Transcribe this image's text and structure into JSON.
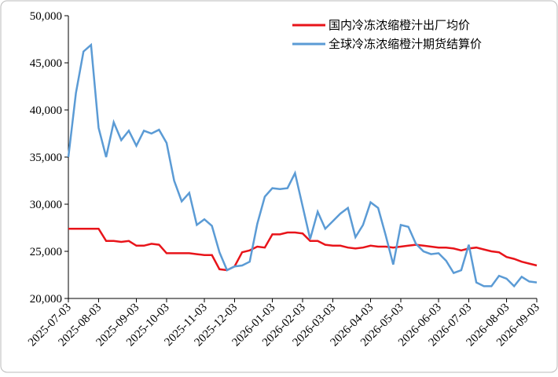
{
  "chart_data": {
    "type": "line",
    "categories": [
      "2025-07-03",
      null,
      null,
      null,
      "2025-08-03",
      null,
      null,
      null,
      null,
      "2025-09-03",
      null,
      null,
      null,
      "2025-10-03",
      null,
      null,
      null,
      null,
      "2025-11-03",
      null,
      null,
      null,
      "2025-12-03",
      null,
      null,
      null,
      null,
      "2026-01-03",
      null,
      null,
      null,
      "2026-02-03",
      null,
      null,
      null,
      "2026-03-03",
      null,
      null,
      null,
      null,
      "2026-04-03",
      null,
      null,
      null,
      "2026-05-03",
      null,
      null,
      null,
      null,
      "2026-06-03",
      null,
      null,
      null,
      "2026-07-03",
      null,
      null,
      null,
      null,
      "2026-08-03",
      null,
      null,
      null,
      "2026-09-03"
    ],
    "series": [
      {
        "name": "国内冷冻浓缩橙汁出厂均价",
        "color": "#e8141a",
        "values": [
          27400,
          27400,
          27400,
          27400,
          27400,
          26100,
          26100,
          26000,
          26100,
          25600,
          25600,
          25800,
          25700,
          24800,
          24800,
          24800,
          24800,
          24700,
          24600,
          24600,
          23100,
          23000,
          23400,
          24900,
          25100,
          25500,
          25400,
          26800,
          26800,
          27000,
          27000,
          26900,
          26100,
          26100,
          25700,
          25600,
          25600,
          25400,
          25300,
          25400,
          25600,
          25500,
          25500,
          25400,
          25500,
          25600,
          25700,
          25600,
          25500,
          25400,
          25400,
          25300,
          25100,
          25300,
          25400,
          25200,
          25000,
          24900,
          24400,
          24200,
          23900,
          23700,
          23500
        ]
      },
      {
        "name": "全球冷冻浓缩橙汁期货结算价",
        "color": "#5b9bd5",
        "values": [
          35000,
          41800,
          46200,
          46900,
          38100,
          35000,
          38700,
          36800,
          37800,
          36200,
          37800,
          37500,
          37900,
          36500,
          32500,
          30300,
          31200,
          27800,
          28400,
          27700,
          24900,
          23000,
          23400,
          23500,
          23900,
          27900,
          30800,
          31700,
          31600,
          31700,
          33300,
          29800,
          26300,
          29200,
          27400,
          28200,
          29000,
          29600,
          26500,
          27800,
          30200,
          29600,
          26700,
          23600,
          27800,
          27600,
          25800,
          25000,
          24700,
          24800,
          24000,
          22700,
          23000,
          25700,
          21700,
          21300,
          21300,
          22400,
          22100,
          21300,
          22300,
          21800,
          21700
        ]
      }
    ],
    "ylim": [
      20000,
      50000
    ],
    "yticks": [
      {
        "value": 20000,
        "label": "20,000"
      },
      {
        "value": 25000,
        "label": "25,000"
      },
      {
        "value": 30000,
        "label": "30,000"
      },
      {
        "value": 35000,
        "label": "35,000"
      },
      {
        "value": 40000,
        "label": "40,000"
      },
      {
        "value": 45000,
        "label": "45,000"
      },
      {
        "value": 50000,
        "label": "50,000"
      }
    ],
    "grid": false,
    "legend": "top-right"
  }
}
